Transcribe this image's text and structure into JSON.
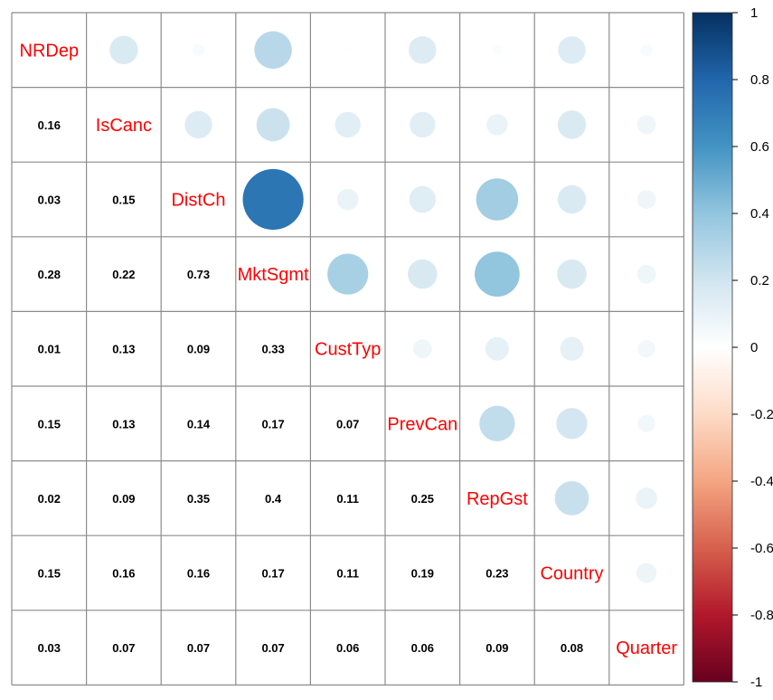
{
  "chart_data": {
    "type": "heatmap",
    "subtype": "correlation-matrix-mixed",
    "upper_method": "circle",
    "lower_method": "number",
    "variables": [
      "NRDep",
      "IsCanc",
      "DistCh",
      "MktSgmt",
      "CustTyp",
      "PrevCan",
      "RepGst",
      "Country",
      "Quarter"
    ],
    "matrix": [
      [
        1,
        0.16,
        0.03,
        0.28,
        0.01,
        0.15,
        0.02,
        0.15,
        0.03
      ],
      [
        0.16,
        1,
        0.15,
        0.22,
        0.13,
        0.13,
        0.09,
        0.16,
        0.07
      ],
      [
        0.03,
        0.15,
        1,
        0.73,
        0.09,
        0.14,
        0.35,
        0.16,
        0.07
      ],
      [
        0.28,
        0.22,
        0.73,
        1,
        0.33,
        0.17,
        0.4,
        0.17,
        0.07
      ],
      [
        0.01,
        0.13,
        0.09,
        0.33,
        1,
        0.07,
        0.11,
        0.11,
        0.06
      ],
      [
        0.15,
        0.13,
        0.14,
        0.17,
        0.07,
        1,
        0.25,
        0.19,
        0.06
      ],
      [
        0.02,
        0.09,
        0.35,
        0.4,
        0.11,
        0.25,
        1,
        0.23,
        0.09
      ],
      [
        0.15,
        0.16,
        0.16,
        0.17,
        0.11,
        0.19,
        0.23,
        1,
        0.08
      ],
      [
        0.03,
        0.07,
        0.07,
        0.07,
        0.06,
        0.06,
        0.09,
        0.08,
        1
      ]
    ],
    "colorbar": {
      "range": [
        -1,
        1
      ],
      "ticks": [
        "1",
        "0.8",
        "0.6",
        "0.4",
        "0.2",
        "0",
        "-0.2",
        "-0.4",
        "-0.6",
        "-0.8",
        "-1"
      ],
      "colors": [
        "#67001F",
        "#B2182B",
        "#D6604D",
        "#F4A582",
        "#FDDBC7",
        "#FFFFFF",
        "#D1E5F0",
        "#92C5DE",
        "#4393C3",
        "#2166AC",
        "#053061"
      ]
    },
    "label_color": "#FF0000",
    "grid": true
  }
}
